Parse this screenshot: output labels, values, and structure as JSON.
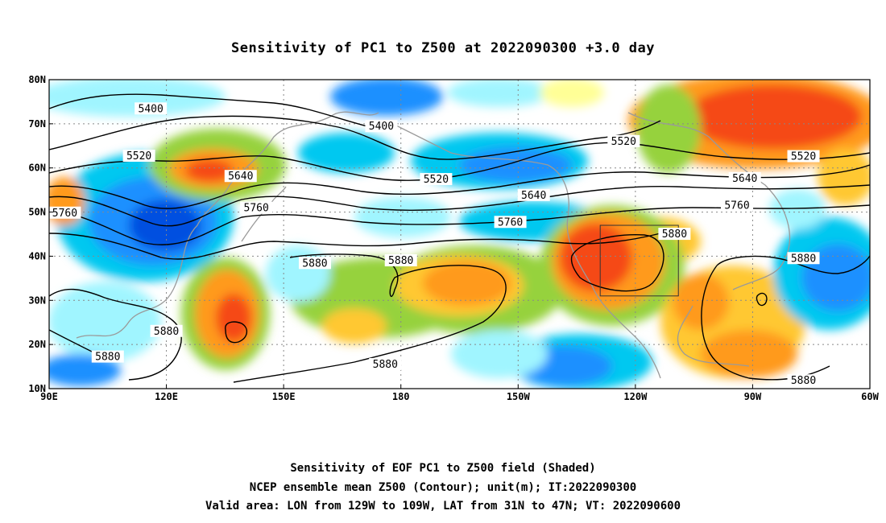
{
  "title": "Sensitivity of PC1 to Z500 at 2022090300 +3.0 day",
  "captions": [
    "Sensitivity of EOF PC1 to Z500 field (Shaded)",
    "NCEP ensemble mean Z500 (Contour); unit(m); IT:2022090300",
    "Valid area: LON from 129W to 109W, LAT from 31N to 47N; VT: 2022090600"
  ],
  "map": {
    "lon_range": [
      90,
      300
    ],
    "lat_range": [
      10,
      80
    ],
    "x_ticks": [
      {
        "lon": 90,
        "label": "90E"
      },
      {
        "lon": 120,
        "label": "120E"
      },
      {
        "lon": 150,
        "label": "150E"
      },
      {
        "lon": 180,
        "label": "180"
      },
      {
        "lon": 210,
        "label": "150W"
      },
      {
        "lon": 240,
        "label": "120W"
      },
      {
        "lon": 270,
        "label": "90W"
      },
      {
        "lon": 300,
        "label": "60W"
      }
    ],
    "y_ticks": [
      {
        "lat": 80,
        "label": "80N"
      },
      {
        "lat": 70,
        "label": "70N"
      },
      {
        "lat": 60,
        "label": "60N"
      },
      {
        "lat": 50,
        "label": "50N"
      },
      {
        "lat": 40,
        "label": "40N"
      },
      {
        "lat": 30,
        "label": "30N"
      },
      {
        "lat": 20,
        "label": "20N"
      },
      {
        "lat": 10,
        "label": "10N"
      }
    ],
    "valid_box": {
      "lon_min": 231,
      "lon_max": 251,
      "lat_min": 31,
      "lat_max": 47
    },
    "contour_labels": [
      {
        "text": "5400",
        "lon": 116,
        "lat": 73.2
      },
      {
        "text": "5400",
        "lon": 175,
        "lat": 69.2
      },
      {
        "text": "5520",
        "lon": 113,
        "lat": 62.5
      },
      {
        "text": "5520",
        "lon": 189,
        "lat": 57.2
      },
      {
        "text": "5520",
        "lon": 237,
        "lat": 65.8
      },
      {
        "text": "5520",
        "lon": 283,
        "lat": 62.4
      },
      {
        "text": "5640",
        "lon": 139,
        "lat": 57.9
      },
      {
        "text": "5640",
        "lon": 214,
        "lat": 53.6
      },
      {
        "text": "5640",
        "lon": 268,
        "lat": 57.4
      },
      {
        "text": "5760",
        "lon": 94,
        "lat": 49.6
      },
      {
        "text": "5760",
        "lon": 143,
        "lat": 50.7
      },
      {
        "text": "5760",
        "lon": 208,
        "lat": 47.5
      },
      {
        "text": "5760",
        "lon": 266,
        "lat": 51.3
      },
      {
        "text": "5880",
        "lon": 158,
        "lat": 38.2
      },
      {
        "text": "5880",
        "lon": 180,
        "lat": 38.8
      },
      {
        "text": "5880",
        "lon": 250,
        "lat": 44.8
      },
      {
        "text": "5880",
        "lon": 283,
        "lat": 39.3
      },
      {
        "text": "5880",
        "lon": 120,
        "lat": 22.8
      },
      {
        "text": "5880",
        "lon": 105,
        "lat": 17.0
      },
      {
        "text": "5880",
        "lon": 176,
        "lat": 15.3
      },
      {
        "text": "5880",
        "lon": 283,
        "lat": 11.6
      }
    ],
    "colors": {
      "deep_blue": "#0050e0",
      "blue": "#1a90ff",
      "sky": "#00c8f0",
      "cyan": "#a0f5ff",
      "yellow": "#ffff96",
      "green": "#96d23c",
      "orange_light": "#ffc832",
      "orange": "#ff9a1e",
      "red_orange": "#f54a14"
    }
  }
}
